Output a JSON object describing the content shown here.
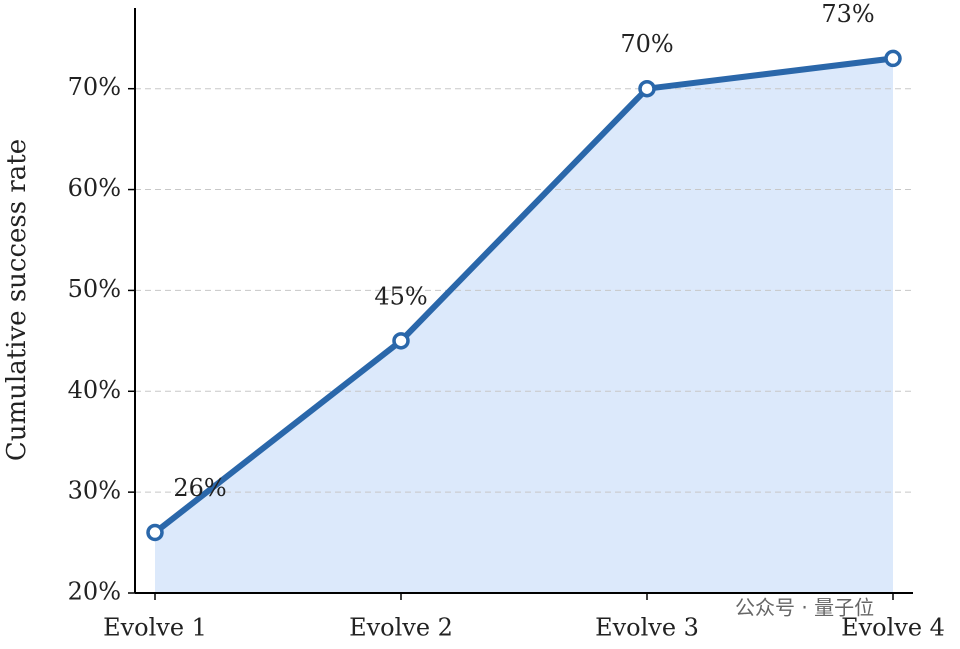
{
  "chart_data": {
    "type": "line",
    "y_label": "Cumulative success rate",
    "categories": [
      "Evolve 1",
      "Evolve 2",
      "Evolve 3",
      "Evolve 4"
    ],
    "series": [
      {
        "color": "#2a67aa",
        "fill": "#dce9fb",
        "values": [
          26,
          45,
          70,
          73
        ],
        "value_labels": [
          "26%",
          "45%",
          "70%",
          "73%"
        ]
      }
    ],
    "ylim": [
      20,
      78
    ],
    "yticks": [
      {
        "value": 20,
        "label": "20%"
      },
      {
        "value": 30,
        "label": "30%"
      },
      {
        "value": 40,
        "label": "40%"
      },
      {
        "value": 50,
        "label": "50%"
      },
      {
        "value": 60,
        "label": "60%"
      },
      {
        "value": 70,
        "label": "70%"
      }
    ],
    "grid": true,
    "watermark": "公众号 · 量子位"
  }
}
